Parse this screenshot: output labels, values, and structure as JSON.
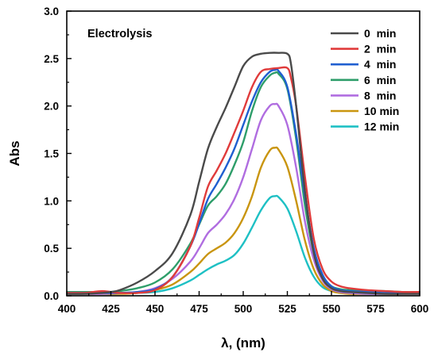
{
  "chart_data": {
    "type": "line",
    "annotation": "Electrolysis",
    "xlabel": "λ, (nm)",
    "ylabel": "Abs",
    "xlim": [
      400,
      600
    ],
    "ylim": [
      0,
      3.0
    ],
    "xticks": [
      400,
      425,
      450,
      475,
      500,
      525,
      550,
      575,
      600
    ],
    "xtick_labels": [
      "400",
      "425",
      "450",
      "475",
      "500",
      "525",
      "550",
      "575",
      "600"
    ],
    "yticks": [
      0,
      0.5,
      1.0,
      1.5,
      2.0,
      2.5,
      3.0
    ],
    "ytick_labels": [
      "0.0",
      "0.5",
      "1.0",
      "1.5",
      "2.0",
      "2.5",
      "3.0"
    ],
    "grid": false,
    "legend_position": "top-right",
    "series": [
      {
        "name": "0  min",
        "color": "#4a4a4a",
        "x": [
          400,
          410,
          420,
          425,
          430,
          440,
          450,
          460,
          470,
          475,
          480,
          485,
          490,
          495,
          500,
          505,
          510,
          515,
          520,
          525,
          527,
          530,
          535,
          540,
          545,
          550,
          555,
          560,
          570,
          580,
          590,
          600
        ],
        "y": [
          0.02,
          0.02,
          0.03,
          0.04,
          0.06,
          0.14,
          0.26,
          0.45,
          0.85,
          1.2,
          1.55,
          1.78,
          1.98,
          2.2,
          2.42,
          2.52,
          2.55,
          2.56,
          2.56,
          2.55,
          2.45,
          2.0,
          1.1,
          0.45,
          0.18,
          0.08,
          0.05,
          0.04,
          0.03,
          0.02,
          0.02,
          0.02
        ]
      },
      {
        "name": "2  min",
        "color": "#e03b3b",
        "x": [
          400,
          410,
          415,
          420,
          425,
          430,
          440,
          450,
          460,
          470,
          475,
          480,
          485,
          490,
          495,
          500,
          505,
          510,
          515,
          520,
          525,
          527,
          530,
          535,
          540,
          545,
          550,
          555,
          560,
          570,
          580,
          590,
          600
        ],
        "y": [
          0.03,
          0.03,
          0.04,
          0.05,
          0.04,
          0.03,
          0.03,
          0.06,
          0.2,
          0.52,
          0.82,
          1.15,
          1.32,
          1.5,
          1.72,
          1.95,
          2.2,
          2.36,
          2.39,
          2.4,
          2.4,
          2.3,
          2.0,
          1.25,
          0.6,
          0.28,
          0.15,
          0.1,
          0.08,
          0.06,
          0.05,
          0.04,
          0.04
        ]
      },
      {
        "name": "4  min",
        "color": "#1f5fd0",
        "x": [
          400,
          410,
          420,
          425,
          430,
          440,
          450,
          460,
          470,
          475,
          480,
          485,
          490,
          495,
          500,
          505,
          510,
          515,
          518,
          520,
          525,
          530,
          535,
          540,
          545,
          550,
          555,
          560,
          570,
          580,
          590,
          600
        ],
        "y": [
          0.03,
          0.03,
          0.03,
          0.03,
          0.03,
          0.04,
          0.07,
          0.2,
          0.52,
          0.76,
          1.02,
          1.18,
          1.35,
          1.55,
          1.8,
          2.05,
          2.25,
          2.36,
          2.38,
          2.37,
          2.2,
          1.7,
          1.05,
          0.5,
          0.22,
          0.1,
          0.06,
          0.05,
          0.04,
          0.03,
          0.03,
          0.03
        ]
      },
      {
        "name": "6  min",
        "color": "#2e9e6a",
        "x": [
          400,
          410,
          420,
          425,
          430,
          440,
          450,
          460,
          470,
          475,
          480,
          485,
          490,
          495,
          500,
          505,
          510,
          515,
          518,
          520,
          525,
          530,
          535,
          540,
          545,
          550,
          555,
          560,
          570,
          580,
          590,
          600
        ],
        "y": [
          0.04,
          0.04,
          0.04,
          0.04,
          0.05,
          0.08,
          0.14,
          0.28,
          0.55,
          0.75,
          0.95,
          1.05,
          1.18,
          1.38,
          1.62,
          1.95,
          2.2,
          2.32,
          2.35,
          2.34,
          2.18,
          1.65,
          0.95,
          0.45,
          0.2,
          0.1,
          0.07,
          0.06,
          0.05,
          0.05,
          0.04,
          0.04
        ]
      },
      {
        "name": "8  min",
        "color": "#b06de0",
        "x": [
          400,
          410,
          420,
          430,
          440,
          450,
          460,
          470,
          475,
          480,
          485,
          490,
          495,
          500,
          505,
          510,
          515,
          518,
          520,
          525,
          530,
          535,
          540,
          545,
          550,
          555,
          560,
          570,
          580,
          590,
          600
        ],
        "y": [
          0.02,
          0.02,
          0.02,
          0.03,
          0.04,
          0.08,
          0.18,
          0.36,
          0.5,
          0.66,
          0.75,
          0.86,
          1.02,
          1.25,
          1.55,
          1.85,
          2.0,
          2.02,
          2.0,
          1.8,
          1.35,
          0.78,
          0.38,
          0.16,
          0.07,
          0.04,
          0.03,
          0.02,
          0.02,
          0.02,
          0.02
        ]
      },
      {
        "name": "10 min",
        "color": "#c9950f",
        "x": [
          400,
          410,
          420,
          430,
          440,
          450,
          460,
          470,
          475,
          480,
          485,
          490,
          495,
          500,
          505,
          510,
          515,
          518,
          520,
          525,
          530,
          535,
          540,
          545,
          550,
          555,
          560,
          570,
          580,
          590,
          600
        ],
        "y": [
          0.02,
          0.02,
          0.02,
          0.02,
          0.03,
          0.06,
          0.12,
          0.25,
          0.34,
          0.44,
          0.5,
          0.56,
          0.66,
          0.82,
          1.05,
          1.35,
          1.53,
          1.56,
          1.54,
          1.36,
          1.0,
          0.58,
          0.28,
          0.12,
          0.05,
          0.03,
          0.02,
          0.02,
          0.02,
          0.02,
          0.02
        ]
      },
      {
        "name": "12 min",
        "color": "#1ec0c4",
        "x": [
          400,
          410,
          420,
          430,
          440,
          450,
          460,
          470,
          475,
          480,
          485,
          490,
          495,
          500,
          505,
          510,
          515,
          518,
          520,
          525,
          530,
          535,
          540,
          545,
          550,
          555,
          560,
          570,
          580,
          590,
          600
        ],
        "y": [
          0.03,
          0.03,
          0.03,
          0.03,
          0.03,
          0.04,
          0.08,
          0.16,
          0.22,
          0.28,
          0.33,
          0.37,
          0.43,
          0.55,
          0.72,
          0.9,
          1.03,
          1.05,
          1.04,
          0.92,
          0.68,
          0.4,
          0.2,
          0.09,
          0.05,
          0.03,
          0.03,
          0.02,
          0.02,
          0.02,
          0.02
        ]
      }
    ]
  }
}
